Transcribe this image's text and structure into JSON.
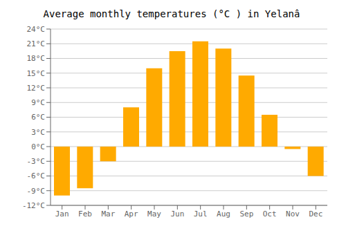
{
  "chart_data": {
    "type": "bar",
    "title": "Average monthly temperatures (°C ) in Yelanâ",
    "categories": [
      "Jan",
      "Feb",
      "Mar",
      "Apr",
      "May",
      "Jun",
      "Jul",
      "Aug",
      "Sep",
      "Oct",
      "Nov",
      "Dec"
    ],
    "values": [
      -10,
      -8.5,
      -3,
      8,
      16,
      19.5,
      21.5,
      20,
      14.5,
      6.5,
      -0.5,
      -6
    ],
    "color": "#FFAA00",
    "ylim": [
      -12,
      24
    ],
    "yticks": [
      {
        "value": -12,
        "label": "-12°C"
      },
      {
        "value": -9,
        "label": "-9°C"
      },
      {
        "value": -6,
        "label": "-6°C"
      },
      {
        "value": -3,
        "label": "-3°C"
      },
      {
        "value": 0,
        "label": "0°C"
      },
      {
        "value": 3,
        "label": "3°C"
      },
      {
        "value": 6,
        "label": "6°C"
      },
      {
        "value": 9,
        "label": "9°C"
      },
      {
        "value": 12,
        "label": "12°C"
      },
      {
        "value": 15,
        "label": "15°C"
      },
      {
        "value": 18,
        "label": "18°C"
      },
      {
        "value": 21,
        "label": "21°C"
      },
      {
        "value": 24,
        "label": "24°C"
      }
    ],
    "grid": true
  }
}
